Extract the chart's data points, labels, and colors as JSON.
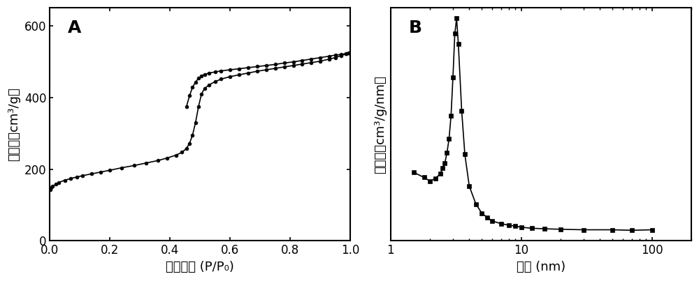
{
  "panel_A_label": "A",
  "panel_B_label": "B",
  "xlabel_A": "相对压力 (P/P₀)",
  "ylabel_A": "吸附量（cm³/g）",
  "xlabel_B": "孔径 (nm)",
  "ylabel_B": "孔体积（cm³/g/nm）",
  "adsorption_x": [
    0.001,
    0.005,
    0.01,
    0.02,
    0.03,
    0.05,
    0.07,
    0.09,
    0.11,
    0.14,
    0.17,
    0.2,
    0.24,
    0.28,
    0.32,
    0.36,
    0.39,
    0.42,
    0.44,
    0.455,
    0.465,
    0.475,
    0.485,
    0.495,
    0.505,
    0.515,
    0.53,
    0.55,
    0.57,
    0.6,
    0.63,
    0.66,
    0.69,
    0.72,
    0.75,
    0.78,
    0.81,
    0.84,
    0.87,
    0.9,
    0.93,
    0.95,
    0.97,
    0.985,
    0.995
  ],
  "adsorption_y": [
    143,
    148,
    152,
    158,
    163,
    169,
    174,
    178,
    182,
    187,
    192,
    197,
    204,
    210,
    217,
    224,
    231,
    239,
    247,
    258,
    272,
    295,
    330,
    375,
    410,
    425,
    435,
    444,
    451,
    458,
    463,
    468,
    473,
    477,
    481,
    485,
    489,
    493,
    497,
    501,
    507,
    511,
    517,
    521,
    524
  ],
  "desorption_x": [
    0.995,
    0.985,
    0.97,
    0.95,
    0.93,
    0.9,
    0.87,
    0.84,
    0.81,
    0.78,
    0.75,
    0.72,
    0.69,
    0.66,
    0.63,
    0.6,
    0.57,
    0.55,
    0.53,
    0.515,
    0.505,
    0.495,
    0.485,
    0.475,
    0.465,
    0.455
  ],
  "desorption_y": [
    524,
    522,
    520,
    518,
    515,
    511,
    507,
    503,
    499,
    496,
    492,
    489,
    486,
    483,
    480,
    477,
    474,
    471,
    468,
    464,
    460,
    453,
    443,
    428,
    405,
    375
  ],
  "pore_x": [
    1.5,
    1.8,
    2.0,
    2.2,
    2.4,
    2.5,
    2.6,
    2.7,
    2.8,
    2.9,
    3.0,
    3.1,
    3.2,
    3.3,
    3.5,
    3.7,
    4.0,
    4.5,
    5.0,
    5.5,
    6.0,
    7.0,
    8.0,
    9.0,
    10.0,
    12.0,
    15.0,
    20.0,
    30.0,
    50.0,
    70.0,
    100.0
  ],
  "pore_y": [
    0.16,
    0.15,
    0.143,
    0.148,
    0.157,
    0.168,
    0.178,
    0.198,
    0.225,
    0.27,
    0.345,
    0.43,
    0.46,
    0.41,
    0.28,
    0.195,
    0.133,
    0.098,
    0.08,
    0.072,
    0.065,
    0.06,
    0.057,
    0.055,
    0.053,
    0.051,
    0.05,
    0.049,
    0.048,
    0.048,
    0.047,
    0.048
  ],
  "ylim_A": [
    0,
    650
  ],
  "xlim_A": [
    0.0,
    1.0
  ],
  "yticks_A": [
    0,
    200,
    400,
    600
  ],
  "xticks_A": [
    0.0,
    0.2,
    0.4,
    0.6,
    0.8,
    1.0
  ],
  "xlim_B": [
    1.0,
    200
  ],
  "line_color": "#000000",
  "marker_A": "o",
  "marker_size_A": 3.5,
  "marker_size_B": 5,
  "marker_B": "s",
  "label_fontsize": 13,
  "tick_fontsize": 12,
  "panel_label_fontsize": 18,
  "linewidth": 1.2,
  "spine_linewidth": 1.5
}
